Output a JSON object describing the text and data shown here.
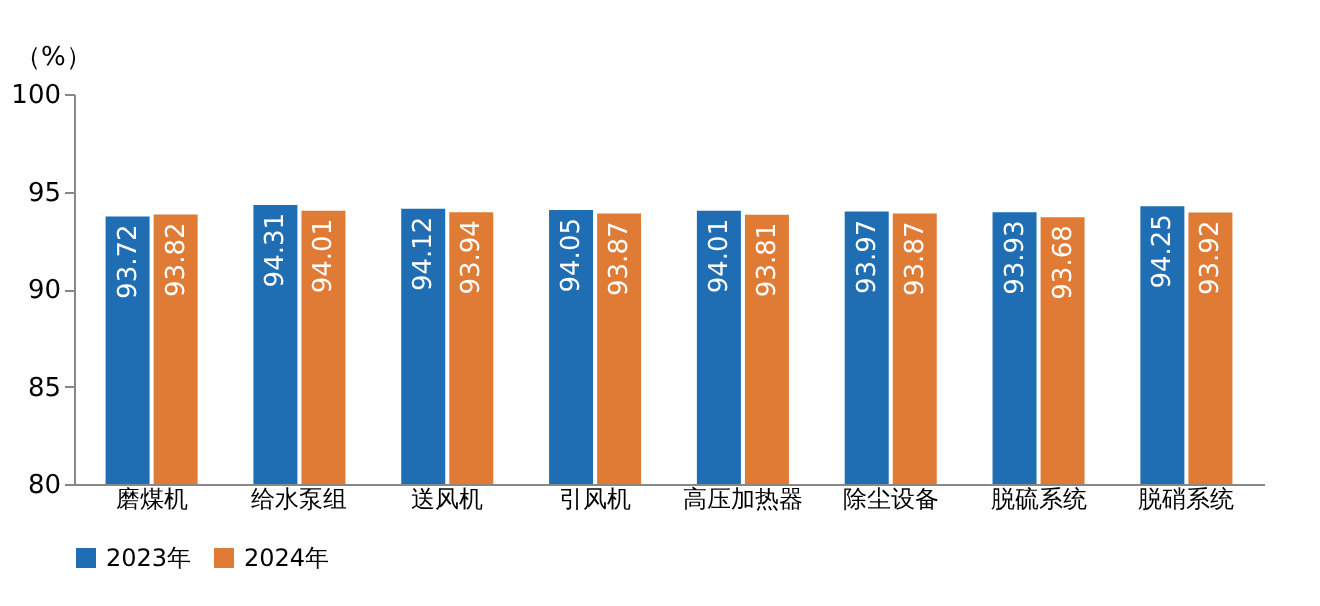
{
  "chart_data": {
    "type": "bar",
    "ylabel": "（%）",
    "categories": [
      "磨煤机",
      "给水泵组",
      "送风机",
      "引风机",
      "高压加热器",
      "除尘设备",
      "脱硫系统",
      "脱硝系统"
    ],
    "series": [
      {
        "name": "2023年",
        "color": "#1f6db3",
        "values": [
          93.72,
          94.31,
          94.12,
          94.05,
          94.01,
          93.97,
          93.93,
          94.25
        ]
      },
      {
        "name": "2024年",
        "color": "#e07b36",
        "values": [
          93.82,
          94.01,
          93.94,
          93.87,
          93.81,
          93.87,
          93.68,
          93.92
        ]
      }
    ],
    "ylim": [
      80,
      100
    ],
    "yticks": [
      80,
      85,
      90,
      95,
      100
    ],
    "data_labels": true,
    "legend": "bottom",
    "grid": false
  }
}
